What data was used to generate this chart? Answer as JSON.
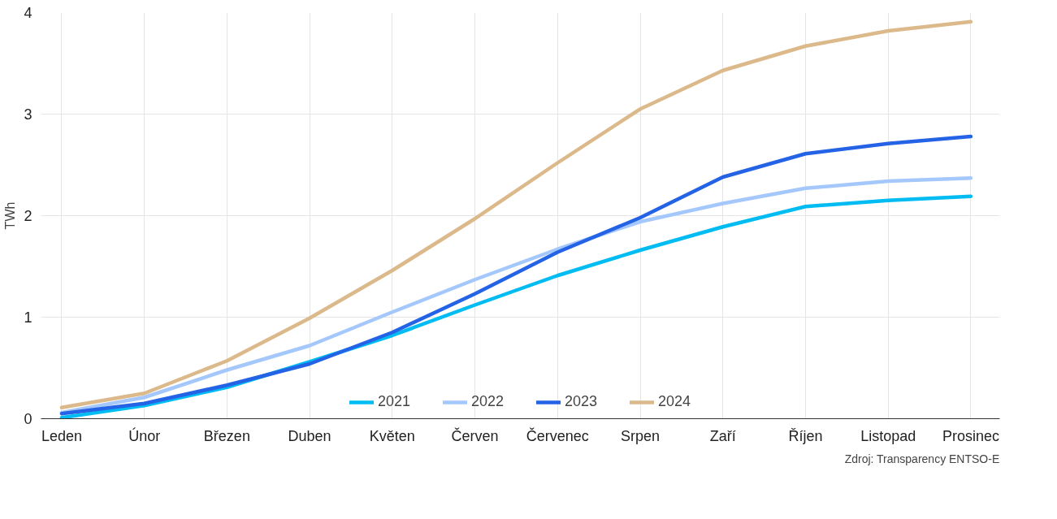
{
  "chart_data": {
    "type": "line",
    "ylabel": "TWh",
    "categories": [
      "Leden",
      "Únor",
      "Březen",
      "Duben",
      "Květen",
      "Červen",
      "Červenec",
      "Srpen",
      "Zaří",
      "Říjen",
      "Listopad",
      "Prosinec"
    ],
    "series": [
      {
        "name": "2021",
        "color": "#00bcf2",
        "values": [
          0.01,
          0.13,
          0.31,
          0.56,
          0.82,
          1.12,
          1.41,
          1.66,
          1.89,
          2.09,
          2.15,
          2.19
        ]
      },
      {
        "name": "2022",
        "color": "#a5c8fc",
        "values": [
          0.06,
          0.21,
          0.48,
          0.72,
          1.05,
          1.37,
          1.67,
          1.94,
          2.12,
          2.27,
          2.34,
          2.37
        ]
      },
      {
        "name": "2023",
        "color": "#2563e6",
        "values": [
          0.05,
          0.15,
          0.33,
          0.54,
          0.85,
          1.23,
          1.64,
          1.98,
          2.38,
          2.61,
          2.71,
          2.78
        ]
      },
      {
        "name": "2024",
        "color": "#dcb98a",
        "values": [
          0.11,
          0.25,
          0.57,
          0.99,
          1.46,
          1.97,
          2.52,
          3.05,
          3.43,
          3.67,
          3.82,
          3.91
        ]
      }
    ],
    "ylim": [
      0,
      4
    ],
    "yticks": [
      0,
      1,
      2,
      3,
      4
    ],
    "grid": true,
    "legend": "bottom",
    "marker": "none",
    "line_style": "solid",
    "annotations": [
      "Zdroj: Transparency ENTSO-E"
    ]
  }
}
